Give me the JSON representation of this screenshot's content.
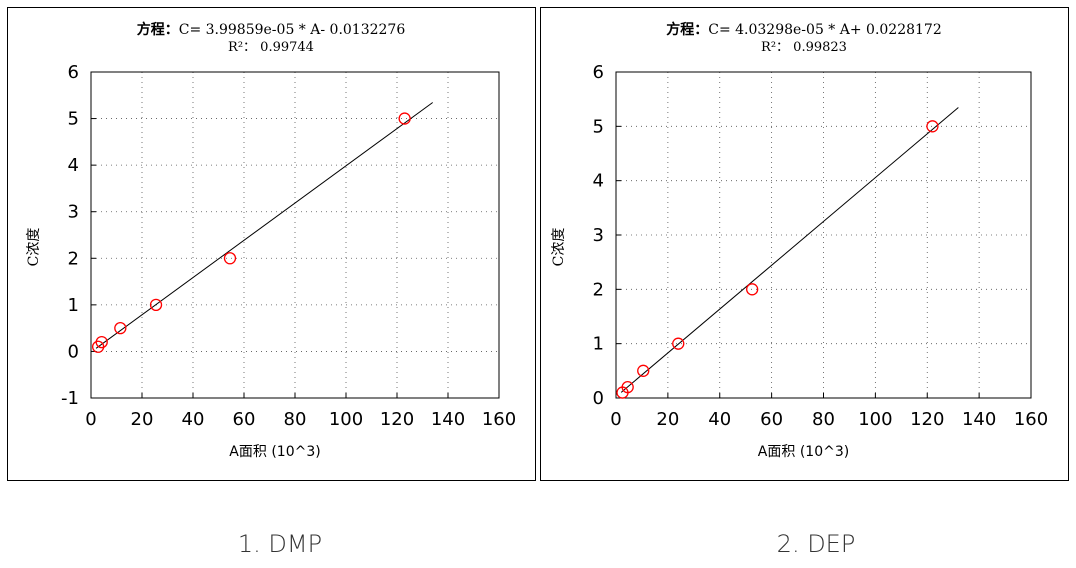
{
  "chart_data": [
    {
      "type": "scatter",
      "equation_prefix": "方程：",
      "equation": "C= 3.99859e-05 * A- 0.0132276",
      "r2_label": "R²：",
      "r2_value": "0.99744",
      "xlabel": "A面积  (10^3)",
      "ylabel": "C浓度",
      "xlim": [
        0,
        160
      ],
      "ylim": [
        -1,
        6
      ],
      "xticks": [
        0,
        20,
        40,
        60,
        80,
        100,
        120,
        140,
        160
      ],
      "yticks": [
        -1,
        0,
        1,
        2,
        3,
        4,
        5,
        6
      ],
      "grid": true,
      "points": [
        {
          "x": 2.8,
          "y": 0.1
        },
        {
          "x": 4.2,
          "y": 0.2
        },
        {
          "x": 11.5,
          "y": 0.5
        },
        {
          "x": 25.5,
          "y": 1.0
        },
        {
          "x": 54.5,
          "y": 2.0
        },
        {
          "x": 123.0,
          "y": 5.0
        }
      ],
      "fit_line": {
        "x": [
          2,
          134
        ],
        "slope": 0.0399859,
        "intercept": -0.0132276
      },
      "marker_color": "#ff0000",
      "line_color": "#000000"
    },
    {
      "type": "scatter",
      "equation_prefix": "方程：",
      "equation": "C= 4.03298e-05 * A+ 0.0228172",
      "r2_label": "R²：",
      "r2_value": "0.99823",
      "xlabel": "A面积  (10^3)",
      "ylabel": "C浓度",
      "xlim": [
        0,
        160
      ],
      "ylim": [
        0,
        6
      ],
      "xticks": [
        0,
        20,
        40,
        60,
        80,
        100,
        120,
        140,
        160
      ],
      "yticks": [
        0,
        1,
        2,
        3,
        4,
        5,
        6
      ],
      "grid": true,
      "points": [
        {
          "x": 2.5,
          "y": 0.1
        },
        {
          "x": 4.5,
          "y": 0.2
        },
        {
          "x": 10.5,
          "y": 0.5
        },
        {
          "x": 24.0,
          "y": 1.0
        },
        {
          "x": 52.5,
          "y": 2.0
        },
        {
          "x": 122.0,
          "y": 5.0
        }
      ],
      "fit_line": {
        "x": [
          2,
          132
        ],
        "slope": 0.0403298,
        "intercept": 0.0228172
      },
      "marker_color": "#ff0000",
      "line_color": "#000000"
    }
  ],
  "captions": [
    "1. DMP",
    "2. DEP"
  ]
}
